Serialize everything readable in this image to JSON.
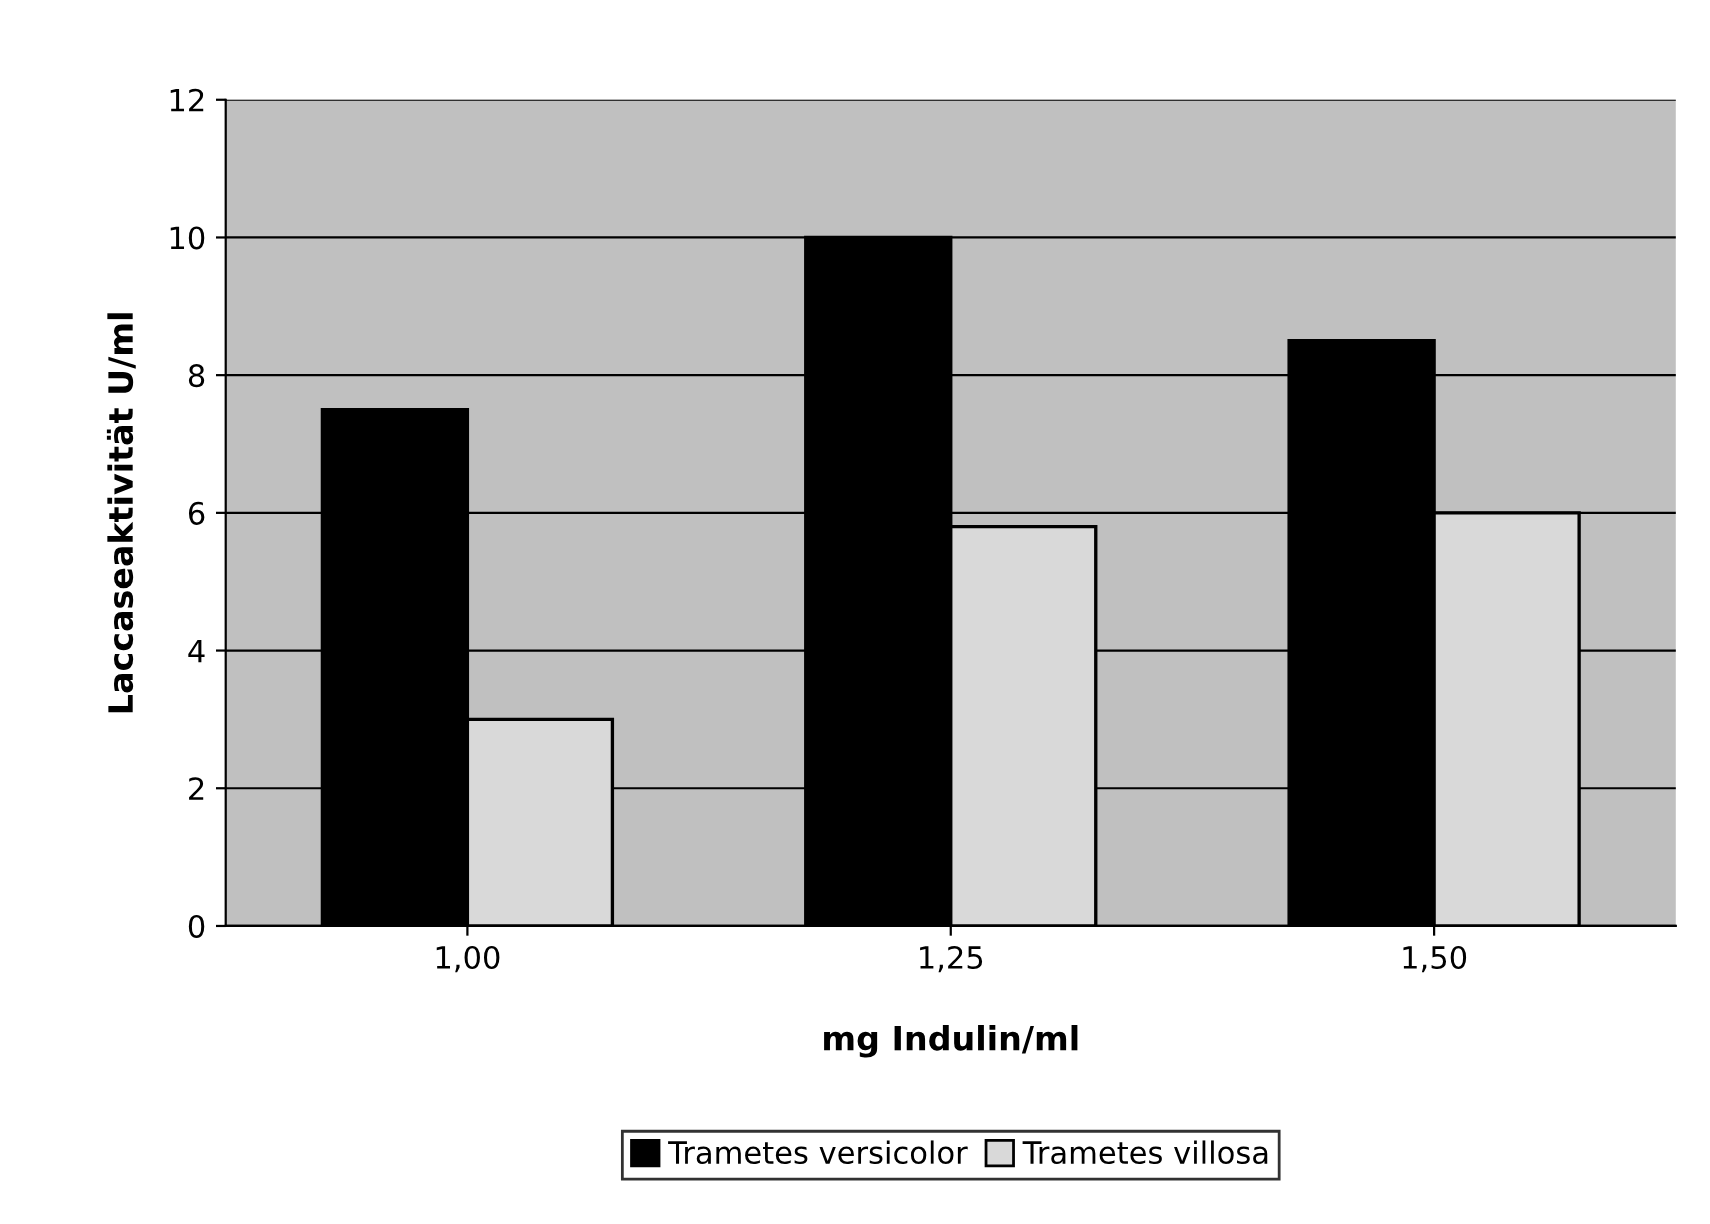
{
  "chart_data": {
    "type": "bar",
    "xlabel": "mg Indulin/ml",
    "ylabel": "Laccaseaktivität U/ml",
    "categories": [
      "1,00",
      "1,25",
      "1,50"
    ],
    "series": [
      {
        "name": "Trametes versicolor",
        "color": "#000000",
        "values": [
          7.5,
          10,
          8.5
        ]
      },
      {
        "name": "Trametes villosa",
        "color": "#d9d9d9",
        "values": [
          3,
          5.8,
          6
        ]
      }
    ],
    "ylim": [
      0,
      12
    ],
    "yticks": [
      0,
      2,
      4,
      6,
      8,
      10,
      12
    ],
    "grid": "y",
    "legend": "bottom"
  }
}
